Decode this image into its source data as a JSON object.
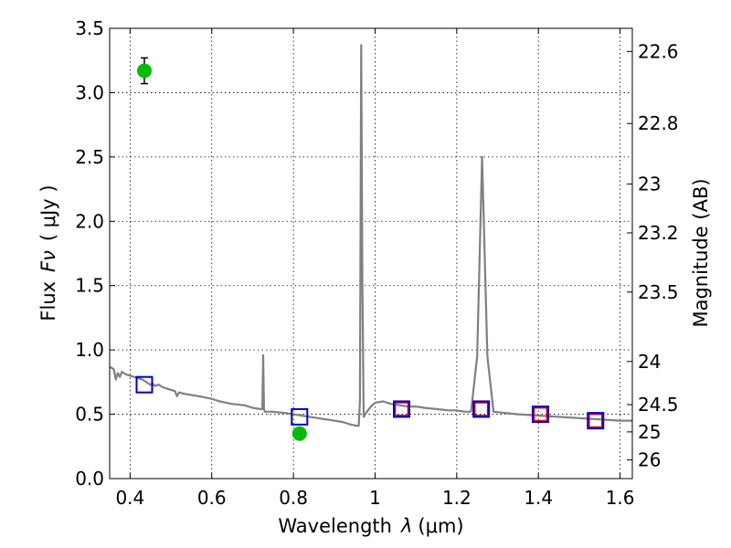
{
  "chart_data": {
    "type": "line",
    "xlabel_main": "Wavelength",
    "xlabel_symbol": "λ",
    "xlabel_unit": "(μm)",
    "ylabel_main": "Flux",
    "ylabel_symbol": "Fν",
    "ylabel_unit": "( μJy )",
    "y2label": "Magnitude (AB)",
    "xlim": [
      0.35,
      1.63
    ],
    "ylim": [
      0,
      3.5
    ],
    "grid": true,
    "x_ticks": [
      {
        "value": 0.4,
        "label": "0.4"
      },
      {
        "value": 0.6,
        "label": "0.6"
      },
      {
        "value": 0.8,
        "label": "0.8"
      },
      {
        "value": 1.0,
        "label": "1"
      },
      {
        "value": 1.2,
        "label": "1.2"
      },
      {
        "value": 1.4,
        "label": "1.4"
      },
      {
        "value": 1.6,
        "label": "1.6"
      }
    ],
    "y_ticks": [
      {
        "value": 0.0,
        "label": "0.0"
      },
      {
        "value": 0.5,
        "label": "0.5"
      },
      {
        "value": 1.0,
        "label": "1.0"
      },
      {
        "value": 1.5,
        "label": "1.5"
      },
      {
        "value": 2.0,
        "label": "2.0"
      },
      {
        "value": 2.5,
        "label": "2.5"
      },
      {
        "value": 3.0,
        "label": "3.0"
      },
      {
        "value": 3.5,
        "label": "3.5"
      }
    ],
    "y2_ticks": [
      {
        "flux": 3.32,
        "label": "22.6"
      },
      {
        "flux": 2.76,
        "label": "22.8"
      },
      {
        "flux": 2.29,
        "label": "23"
      },
      {
        "flux": 1.91,
        "label": "23.2"
      },
      {
        "flux": 1.45,
        "label": "23.5"
      },
      {
        "flux": 0.91,
        "label": "24"
      },
      {
        "flux": 0.575,
        "label": "24.5"
      },
      {
        "flux": 0.363,
        "label": "25"
      },
      {
        "flux": 0.145,
        "label": "26"
      }
    ],
    "colors": {
      "sed": "#808080",
      "model_box": "#0000cc",
      "observed_box": "#dd0000",
      "detection": "#00bb00"
    },
    "series": [
      {
        "kind": "line",
        "points": [
          [
            0.35,
            0.87
          ],
          [
            0.36,
            0.85
          ],
          [
            0.365,
            0.77
          ],
          [
            0.37,
            0.82
          ],
          [
            0.375,
            0.79
          ],
          [
            0.38,
            0.83
          ],
          [
            0.39,
            0.81
          ],
          [
            0.4,
            0.8
          ],
          [
            0.41,
            0.79
          ],
          [
            0.42,
            0.78
          ],
          [
            0.43,
            0.77
          ],
          [
            0.44,
            0.75
          ],
          [
            0.45,
            0.73
          ],
          [
            0.455,
            0.74
          ],
          [
            0.46,
            0.72
          ],
          [
            0.47,
            0.73
          ],
          [
            0.48,
            0.71
          ],
          [
            0.49,
            0.7
          ],
          [
            0.5,
            0.69
          ],
          [
            0.51,
            0.68
          ],
          [
            0.515,
            0.64
          ],
          [
            0.52,
            0.67
          ],
          [
            0.53,
            0.66
          ],
          [
            0.55,
            0.65
          ],
          [
            0.57,
            0.64
          ],
          [
            0.6,
            0.62
          ],
          [
            0.62,
            0.6
          ],
          [
            0.65,
            0.58
          ],
          [
            0.68,
            0.57
          ],
          [
            0.7,
            0.55
          ],
          [
            0.72,
            0.54
          ],
          [
            0.724,
            0.54
          ],
          [
            0.726,
            0.96
          ],
          [
            0.728,
            0.54
          ],
          [
            0.73,
            0.52
          ],
          [
            0.75,
            0.52
          ],
          [
            0.78,
            0.51
          ],
          [
            0.8,
            0.5
          ],
          [
            0.82,
            0.49
          ],
          [
            0.84,
            0.48
          ],
          [
            0.86,
            0.47
          ],
          [
            0.88,
            0.46
          ],
          [
            0.9,
            0.45
          ],
          [
            0.92,
            0.44
          ],
          [
            0.94,
            0.42
          ],
          [
            0.955,
            0.41
          ],
          [
            0.96,
            0.41
          ],
          [
            0.963,
            0.6
          ],
          [
            0.966,
            3.37
          ],
          [
            0.969,
            1.5
          ],
          [
            0.972,
            0.48
          ],
          [
            0.98,
            0.52
          ],
          [
            0.99,
            0.56
          ],
          [
            1.0,
            0.59
          ],
          [
            1.02,
            0.6
          ],
          [
            1.04,
            0.58
          ],
          [
            1.06,
            0.57
          ],
          [
            1.08,
            0.56
          ],
          [
            1.1,
            0.56
          ],
          [
            1.12,
            0.55
          ],
          [
            1.15,
            0.54
          ],
          [
            1.18,
            0.53
          ],
          [
            1.2,
            0.53
          ],
          [
            1.22,
            0.52
          ],
          [
            1.235,
            0.52
          ],
          [
            1.25,
            0.95
          ],
          [
            1.262,
            2.5
          ],
          [
            1.275,
            0.95
          ],
          [
            1.29,
            0.52
          ],
          [
            1.32,
            0.51
          ],
          [
            1.35,
            0.5
          ],
          [
            1.4,
            0.49
          ],
          [
            1.45,
            0.48
          ],
          [
            1.5,
            0.47
          ],
          [
            1.55,
            0.46
          ],
          [
            1.6,
            0.45
          ],
          [
            1.63,
            0.45
          ]
        ]
      },
      {
        "kind": "model_photometry",
        "points": [
          [
            0.435,
            0.73
          ],
          [
            0.815,
            0.48
          ],
          [
            1.065,
            0.54
          ],
          [
            1.26,
            0.54
          ],
          [
            1.405,
            0.5
          ],
          [
            1.54,
            0.45
          ]
        ]
      },
      {
        "kind": "observed_photometry",
        "points": [
          [
            1.065,
            0.54
          ],
          [
            1.26,
            0.54
          ],
          [
            1.405,
            0.5
          ],
          [
            1.54,
            0.45
          ]
        ]
      },
      {
        "kind": "detections",
        "points": [
          {
            "x": 0.435,
            "y": 3.17,
            "err": 0.1
          },
          {
            "x": 0.815,
            "y": 0.35,
            "err": 0.04
          }
        ]
      }
    ]
  }
}
